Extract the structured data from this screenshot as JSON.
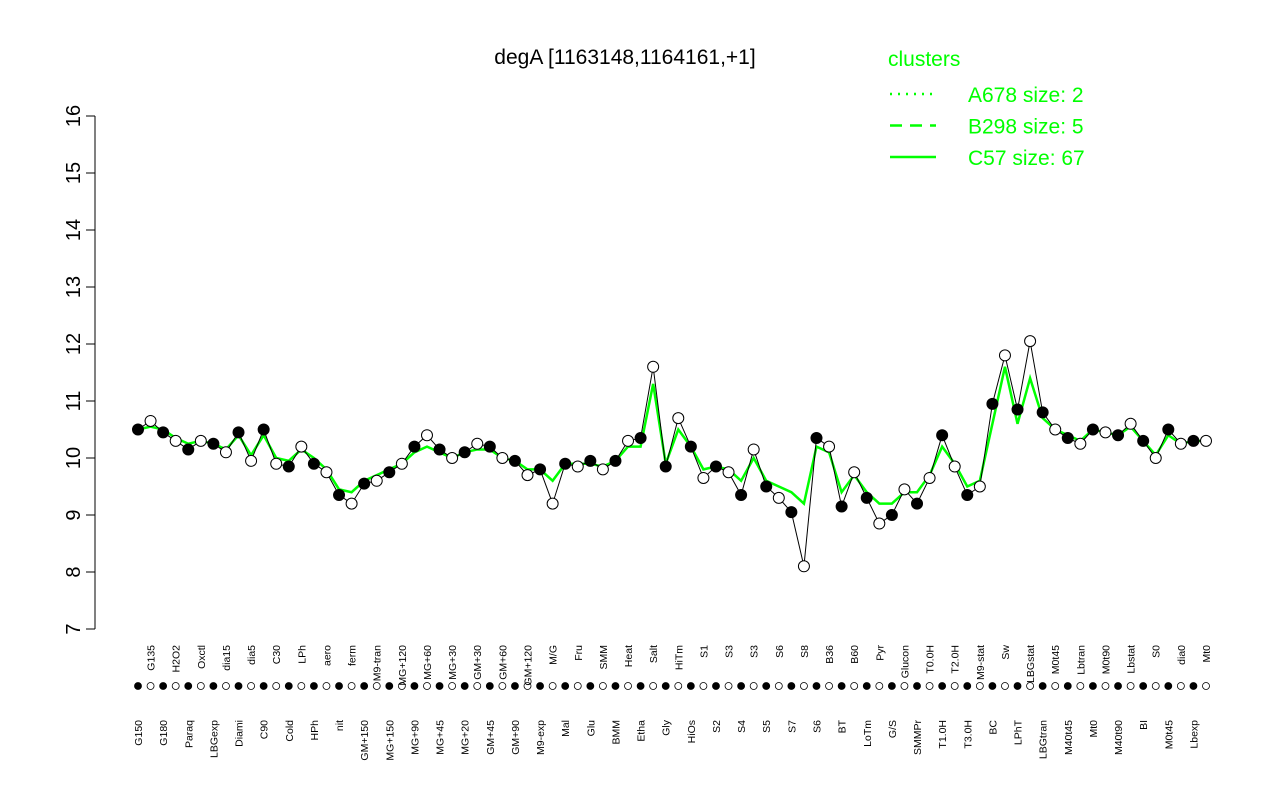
{
  "chart_data": {
    "type": "line_points",
    "title": "degA [1163148,1164161,+1]",
    "categories": [
      "G150",
      "G135",
      "G180",
      "H2O2",
      "Paraq",
      "Oxctl",
      "LBGexp",
      "dia15",
      "Diami",
      "dia5",
      "C90",
      "C30",
      "Cold",
      "LPh",
      "HPh",
      "aero",
      "nit",
      "ferm",
      "GM+150",
      "M9-tran",
      "MG+150",
      "MG+120",
      "MG+90",
      "MG+60",
      "MG+45",
      "MG+30",
      "MG+20",
      "GM+30",
      "GM+45",
      "GM+60",
      "GM+90",
      "GM+120",
      "M9-exp",
      "M/G",
      "Mal",
      "Fru",
      "Glu",
      "SMM",
      "BMM",
      "Heat",
      "Etha",
      "Salt",
      "Gly",
      "HiTm",
      "HiOs",
      "S1",
      "S2",
      "S3",
      "S4",
      "S3",
      "S5",
      "S6",
      "S7",
      "S8",
      "S6",
      "B36",
      "BT",
      "B60",
      "LoTm",
      "Pyr",
      "G/S",
      "Glucon",
      "SMMPr",
      "T0.0H",
      "T1.0H",
      "T2.0H",
      "T3.0H",
      "M9-stat",
      "BC",
      "Sw",
      "LPhT",
      "LBGstat",
      "LBGtran",
      "M0t45",
      "M40t45",
      "Lbtran",
      "Mt0",
      "M0t90",
      "M40t90",
      "Lbstat",
      "BI",
      "S0",
      "M0t45",
      "dia0",
      "Lbexp",
      "Mt0"
    ],
    "values": [
      10.5,
      10.65,
      10.45,
      10.3,
      10.15,
      10.3,
      10.25,
      10.1,
      10.45,
      9.95,
      10.5,
      9.9,
      9.85,
      10.2,
      9.9,
      9.75,
      9.35,
      9.2,
      9.55,
      9.6,
      9.75,
      9.9,
      10.2,
      10.4,
      10.15,
      10.0,
      10.1,
      10.25,
      10.2,
      10.0,
      9.95,
      9.7,
      9.8,
      9.2,
      9.9,
      9.85,
      9.95,
      9.8,
      9.95,
      10.3,
      10.35,
      11.6,
      9.85,
      10.7,
      10.2,
      9.65,
      9.85,
      9.75,
      9.35,
      10.15,
      9.5,
      9.3,
      9.05,
      8.1,
      10.35,
      10.2,
      9.15,
      9.75,
      9.3,
      8.85,
      9.0,
      9.45,
      9.2,
      9.65,
      10.4,
      9.85,
      9.35,
      9.5,
      10.95,
      11.8,
      10.85,
      12.05,
      10.8,
      10.5,
      10.35,
      10.25,
      10.5,
      10.45,
      10.4,
      10.6,
      10.3,
      10.0,
      10.5,
      10.25,
      10.3,
      10.3
    ],
    "marker_fills": [
      "#000000",
      "#ffffff"
    ],
    "series": [
      {
        "name": "A678 size: 2",
        "color": "#00ff00",
        "dash": "dotted"
      },
      {
        "name": "B298 size: 5",
        "color": "#00ff00",
        "dash": "dashed"
      },
      {
        "name": "C57 size: 67",
        "color": "#00ff00",
        "dash": "solid",
        "values": [
          10.5,
          10.55,
          10.5,
          10.35,
          10.25,
          10.3,
          10.25,
          10.15,
          10.4,
          10.05,
          10.4,
          10.0,
          9.95,
          10.15,
          10.0,
          9.8,
          9.45,
          9.4,
          9.6,
          9.7,
          9.8,
          9.9,
          10.1,
          10.2,
          10.1,
          10.0,
          10.1,
          10.15,
          10.15,
          10.0,
          9.95,
          9.8,
          9.8,
          9.6,
          9.9,
          9.9,
          9.9,
          9.85,
          9.95,
          10.2,
          10.2,
          11.3,
          9.9,
          10.5,
          10.2,
          9.8,
          9.85,
          9.8,
          9.6,
          10.0,
          9.6,
          9.5,
          9.4,
          9.2,
          10.2,
          10.1,
          9.4,
          9.7,
          9.4,
          9.2,
          9.2,
          9.4,
          9.4,
          9.7,
          10.2,
          9.9,
          9.5,
          9.6,
          10.6,
          11.6,
          10.6,
          11.4,
          10.7,
          10.5,
          10.4,
          10.3,
          10.5,
          10.45,
          10.4,
          10.55,
          10.3,
          10.05,
          10.4,
          10.25,
          10.3,
          10.3
        ]
      }
    ],
    "legend_title": "clusters",
    "ylim": [
      7,
      16
    ],
    "yticks": [
      7,
      8,
      9,
      10,
      11,
      12,
      13,
      14,
      15,
      16
    ]
  }
}
